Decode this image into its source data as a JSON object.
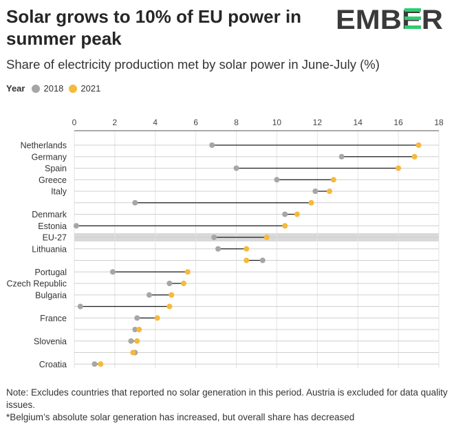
{
  "header": {
    "title": "Solar grows to 10% of EU power in summer peak",
    "subtitle": "Share of electricity production met by solar power in June-July (%)",
    "logo_text": "EMBER"
  },
  "legend": {
    "title": "Year",
    "entries": [
      {
        "label": "2018",
        "color": "#a6a6a6"
      },
      {
        "label": "2021",
        "color": "#f6b93b"
      }
    ]
  },
  "colors": {
    "highlight_row": "#d9d9d9",
    "connector": "#1a1a1a",
    "logo_green": "#2ecc71",
    "logo_dark": "#3a3a3a"
  },
  "chart_data": {
    "type": "dumbbell",
    "x_ticks": [
      "0",
      "2",
      "4",
      "6",
      "8",
      "10",
      "12",
      "14",
      "16",
      "18"
    ],
    "xlim": [
      0,
      18
    ],
    "x_axis_position": "top",
    "grid": true,
    "series": [
      {
        "name": "2018",
        "values": [
          6.8,
          13.2,
          8.0,
          10.0,
          11.9,
          3.0,
          10.4,
          0.1,
          6.9,
          7.1,
          9.3,
          1.9,
          4.7,
          3.7,
          0.3,
          3.1,
          3.0,
          2.8,
          3.0,
          1.0
        ]
      },
      {
        "name": "2021",
        "values": [
          17.0,
          16.8,
          16.0,
          12.8,
          12.6,
          11.7,
          11.0,
          10.4,
          9.5,
          8.5,
          8.5,
          5.6,
          5.4,
          4.8,
          4.7,
          4.1,
          3.2,
          3.1,
          2.9,
          1.3
        ]
      }
    ],
    "categories": [
      "Netherlands",
      "Germany",
      "Spain",
      "Greece",
      "Italy",
      "",
      "Denmark",
      "Estonia",
      "EU-27",
      "Lithuania",
      "",
      "Portugal",
      "Czech Republic",
      "Bulgaria",
      "",
      "France",
      "",
      "Slovenia",
      "",
      "Croatia"
    ],
    "highlight_category": "EU-27"
  },
  "note": {
    "line1": "Note: Excludes countries that reported no solar generation in this period. Austria is excluded for data quality issues.",
    "line2": "*Belgium’s absolute solar generation has increased, but overall share has decreased"
  }
}
